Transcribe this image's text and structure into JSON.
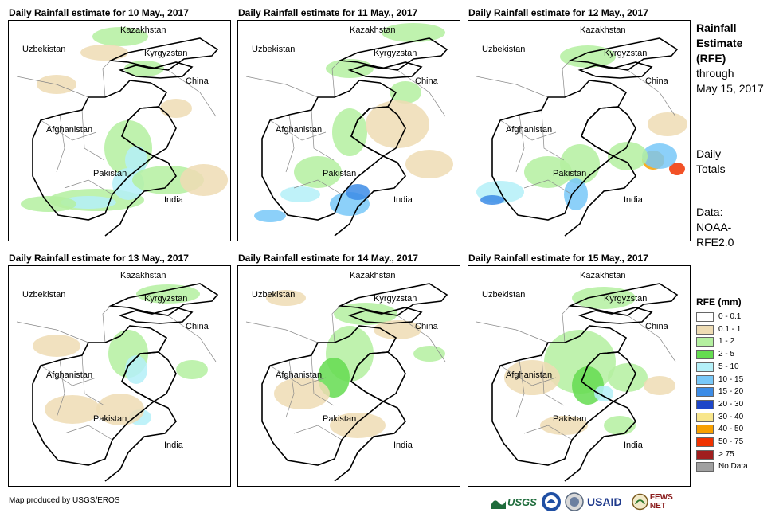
{
  "panels": [
    {
      "title": "Daily Rainfall estimate for 10 May., 2017"
    },
    {
      "title": "Daily Rainfall estimate for 11 May., 2017"
    },
    {
      "title": "Daily Rainfall estimate for 12 May., 2017"
    },
    {
      "title": "Daily Rainfall estimate for 13 May., 2017"
    },
    {
      "title": "Daily Rainfall estimate for 14 May., 2017"
    },
    {
      "title": "Daily Rainfall estimate for 15 May., 2017"
    }
  ],
  "map_labels": {
    "kazakhstan": "Kazakhstan",
    "uzbekistan": "Uzbekistan",
    "kyrgyzstan": "Kyrgyzstan",
    "china": "China",
    "afghanistan": "Afghanistan",
    "pakistan": "Pakistan",
    "india": "India"
  },
  "side": {
    "title_1": "Rainfall",
    "title_2": "Estimate",
    "title_3": "(RFE)",
    "through": "through",
    "date": "May 15, 2017",
    "daily_1": "Daily",
    "daily_2": "Totals",
    "data_1": "Data:",
    "data_2": "NOAA-",
    "data_3": "RFE2.0"
  },
  "legend": {
    "title": "RFE (mm)",
    "items": [
      {
        "label": "0 - 0.1",
        "color": "#ffffff"
      },
      {
        "label": "0.1 - 1",
        "color": "#eedcb4"
      },
      {
        "label": "1 - 2",
        "color": "#b4f0a0"
      },
      {
        "label": "2 - 5",
        "color": "#64dc50"
      },
      {
        "label": "5 - 10",
        "color": "#b4f0f8"
      },
      {
        "label": "10 - 15",
        "color": "#78c8f8"
      },
      {
        "label": "15 - 20",
        "color": "#3c8ce6"
      },
      {
        "label": "20 - 30",
        "color": "#1e46c8"
      },
      {
        "label": "30 - 40",
        "color": "#f8e68c"
      },
      {
        "label": "40 - 50",
        "color": "#f8a000"
      },
      {
        "label": "50 - 75",
        "color": "#f03200"
      },
      {
        "label": "> 75",
        "color": "#a01e1e"
      },
      {
        "label": "No Data",
        "color": "#a0a0a0"
      }
    ]
  },
  "credit": "Map produced by USGS/EROS",
  "logos": {
    "usgs": "USGS",
    "usaid": "USAID",
    "fewsnet": "FEWS NET"
  }
}
